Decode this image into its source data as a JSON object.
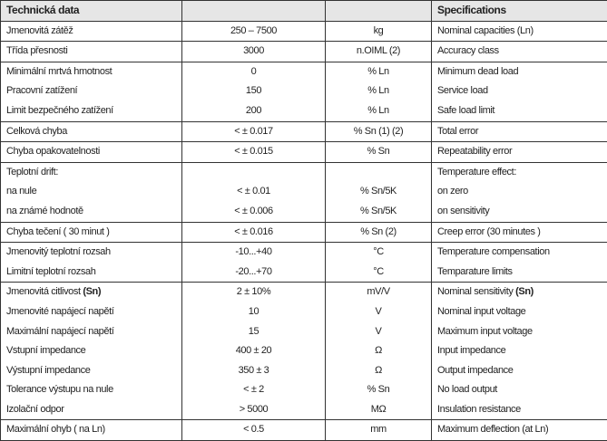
{
  "header": {
    "cz": "Technická data",
    "value": "",
    "unit": "",
    "en": "Specifications"
  },
  "groups": [
    {
      "rows": [
        {
          "cz": "Jmenovitá zátěž",
          "value": "250 – 7500",
          "unit": "kg",
          "en": "Nominal capacities (Ln)"
        }
      ]
    },
    {
      "rows": [
        {
          "cz": "Třída přesnosti",
          "value": "3000",
          "unit": "n.OIML (2)",
          "en": "Accuracy class"
        }
      ]
    },
    {
      "rows": [
        {
          "cz": "Minimální mrtvá hmotnost",
          "value": "0",
          "unit": "% Ln",
          "en": "Minimum dead load"
        },
        {
          "cz": "Pracovní zatížení",
          "value": "150",
          "unit": "% Ln",
          "en": "Service load"
        },
        {
          "cz": "Limit bezpečného zatížení",
          "value": "200",
          "unit": "% Ln",
          "en": "Safe load limit"
        }
      ]
    },
    {
      "rows": [
        {
          "cz": "Celková chyba",
          "value": "< ± 0.017",
          "unit": "% Sn (1) (2)",
          "en": "Total error"
        }
      ]
    },
    {
      "rows": [
        {
          "cz": "Chyba opakovatelnosti",
          "value": "< ± 0.015",
          "unit": "% Sn",
          "en": "Repeatability error"
        }
      ]
    },
    {
      "rows": [
        {
          "cz": "Teplotní drift:",
          "value": "",
          "unit": "",
          "en": "Temperature effect:"
        },
        {
          "cz": "na nule",
          "value": "< ± 0.01",
          "unit": "% Sn/5K",
          "en": "on zero"
        },
        {
          "cz": "na známé hodnotě",
          "value": "< ± 0.006",
          "unit": "% Sn/5K",
          "en": "on sensitivity"
        }
      ]
    },
    {
      "rows": [
        {
          "cz": "Chyba tečení ( 30 minut )",
          "value": "< ± 0.016",
          "unit": "% Sn (2)",
          "en": "Creep error (30 minutes )"
        }
      ]
    },
    {
      "rows": [
        {
          "cz": "Jmenovitý teplotní rozsah",
          "value": "-10...+40",
          "unit": "°C",
          "en": "Temperature compensation"
        },
        {
          "cz": "Limitní teplotní rozsah",
          "value": "-20...+70",
          "unit": "°C",
          "en": "Temparature limits"
        }
      ]
    },
    {
      "rows": [
        {
          "cz": "Jmenovitá citlivost ",
          "cz_bold": "(Sn)",
          "value": "2 ± 10%",
          "unit": "mV/V",
          "en": "Nominal sensitivity ",
          "en_bold": "(Sn)"
        },
        {
          "cz": "Jmenovité napájecí napětí",
          "value": "10",
          "unit": "V",
          "en": "Nominal input voltage"
        },
        {
          "cz": "Maximální napájecí napětí",
          "value": "15",
          "unit": "V",
          "en": "Maximum input voltage"
        },
        {
          "cz": "Vstupní impedance",
          "value": "400 ± 20",
          "unit": "Ω",
          "en": "Input impedance"
        },
        {
          "cz": "Výstupní impedance",
          "value": "350 ± 3",
          "unit": "Ω",
          "en": "Output impedance"
        },
        {
          "cz": "Tolerance výstupu na nule",
          "value": "< ± 2",
          "unit": "% Sn",
          "en": "No load output"
        },
        {
          "cz": "Izolační odpor",
          "value": "> 5000",
          "unit": "MΩ",
          "en": "Insulation resistance"
        }
      ]
    },
    {
      "rows": [
        {
          "cz": "Maximální ohyb ( na Ln)",
          "value": "< 0.5",
          "unit": "mm",
          "en": "Maximum deflection (at Ln)"
        }
      ]
    }
  ]
}
